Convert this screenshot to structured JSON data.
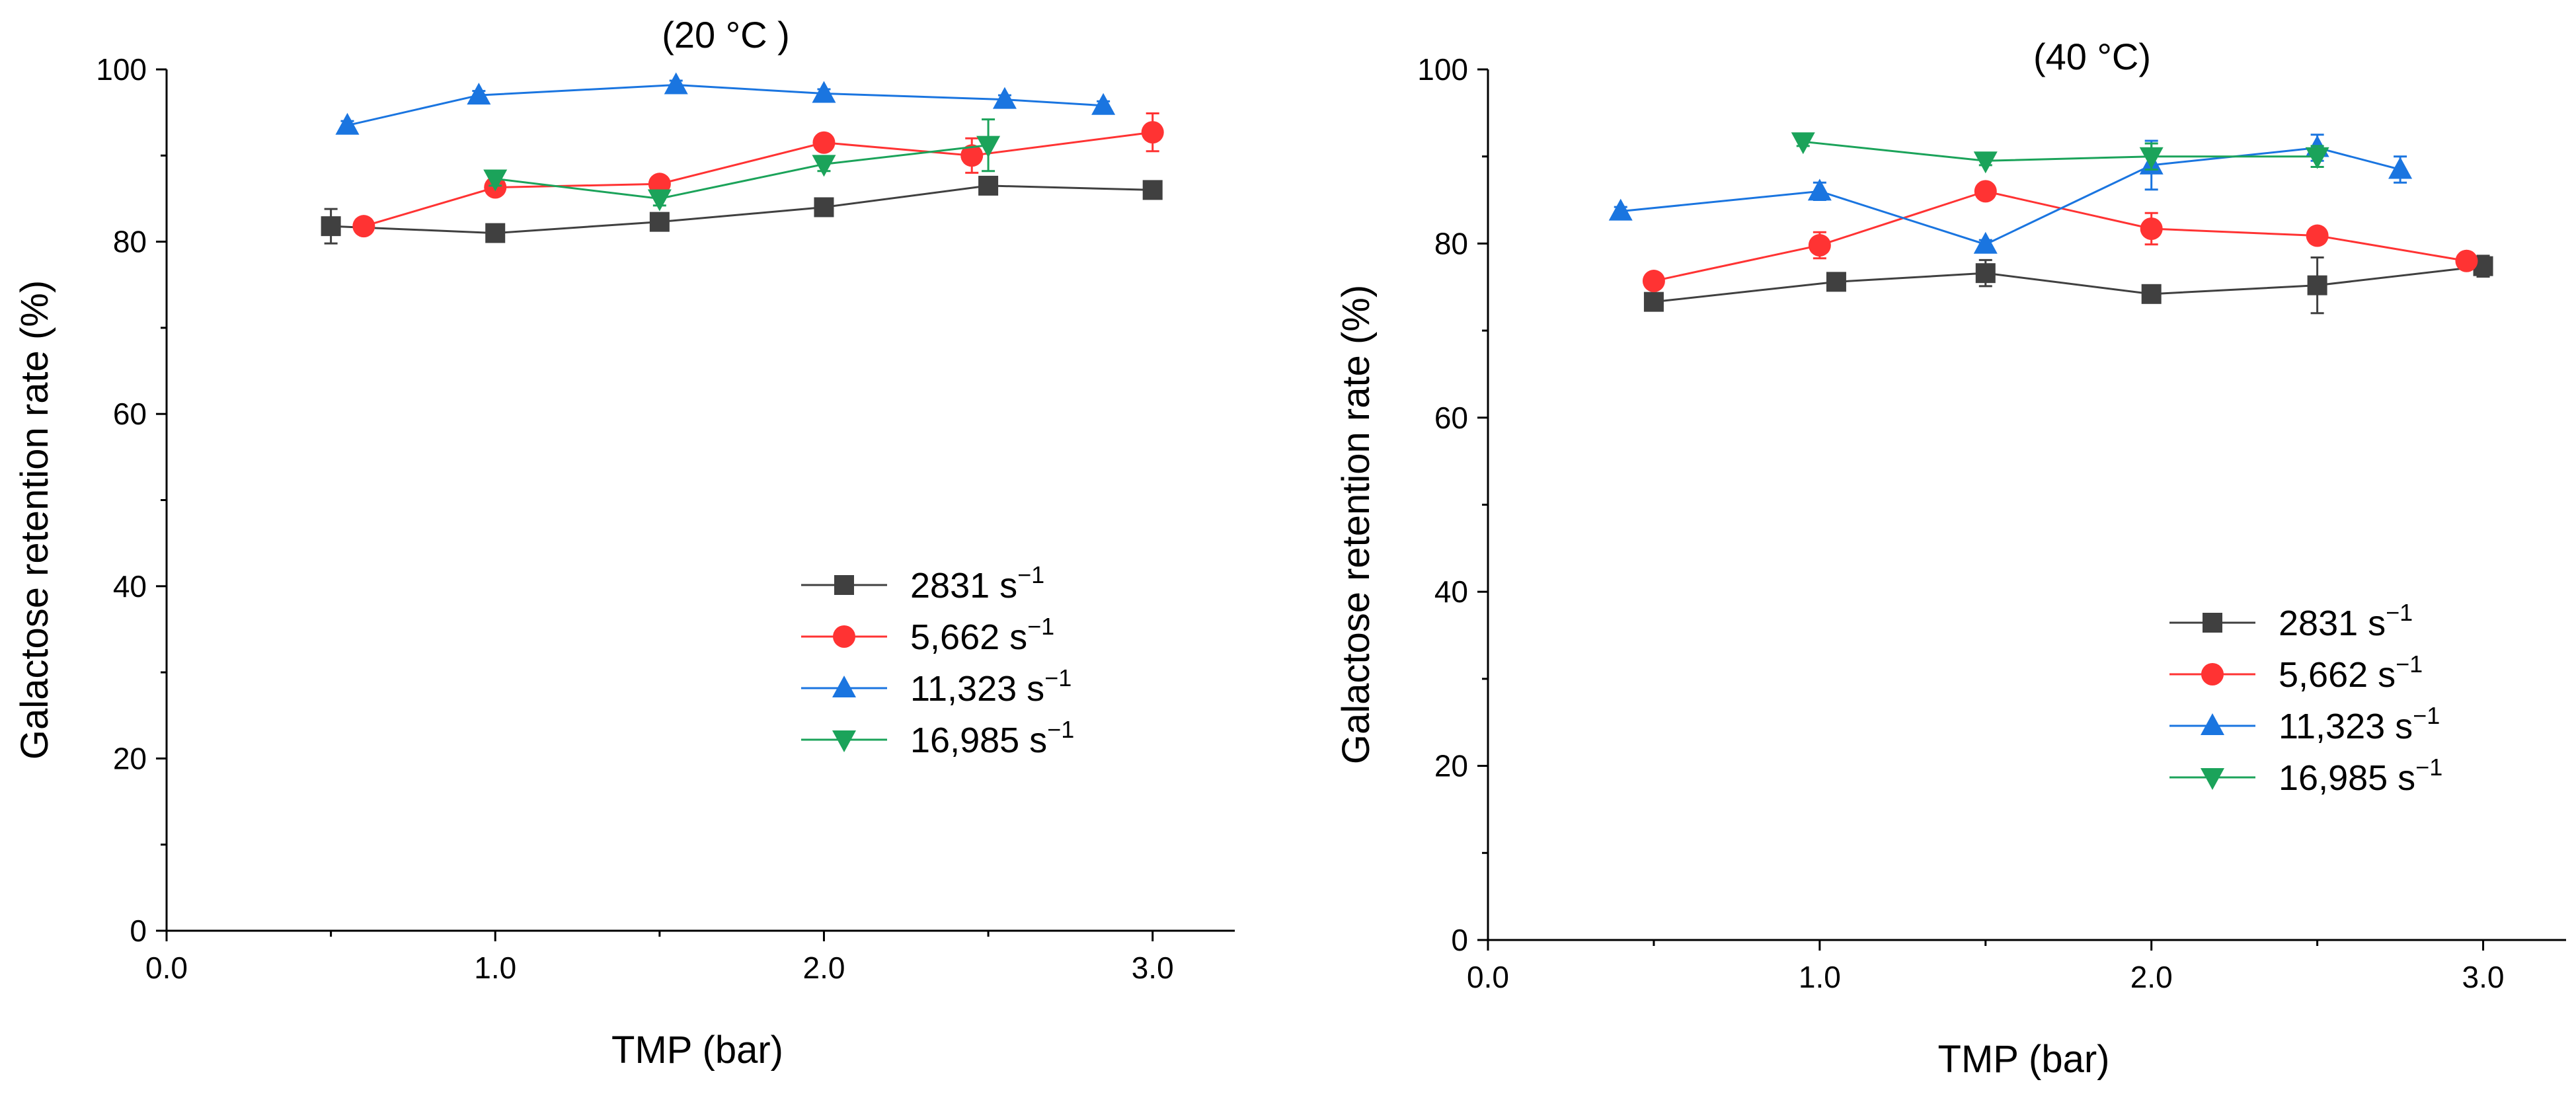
{
  "chart_data": [
    {
      "type": "line",
      "title": "(20 °C )",
      "xlabel": "TMP (bar)",
      "ylabel": "Galactose retention rate (%)",
      "xlim": [
        0.0,
        3.25
      ],
      "ylim": [
        0,
        100
      ],
      "xticks": [
        "0.0",
        "1.0",
        "2.0",
        "3.0"
      ],
      "yticks": [
        "0",
        "20",
        "40",
        "60",
        "80",
        "100"
      ],
      "legend_position": "center-right",
      "series": [
        {
          "name": "2831",
          "unit": "s",
          "exp": "−1",
          "color": "#404040",
          "marker": "square",
          "x": [
            0.5,
            1.0,
            1.5,
            2.0,
            2.5,
            3.0
          ],
          "y": [
            81.8,
            81.0,
            82.3,
            84.0,
            86.5,
            86.0
          ],
          "err": [
            2.0,
            0.8,
            0.8,
            0.8,
            1.0,
            0.8
          ]
        },
        {
          "name": "5,662",
          "unit": "s",
          "exp": "−1",
          "color": "#ff3333",
          "marker": "circle",
          "x": [
            0.6,
            1.0,
            1.5,
            2.0,
            2.45,
            3.0
          ],
          "y": [
            81.8,
            86.3,
            86.7,
            91.5,
            90.0,
            92.7
          ],
          "err": [
            0.6,
            0.8,
            0.8,
            0.8,
            2.0,
            2.2
          ]
        },
        {
          "name": "11,323",
          "unit": "s",
          "exp": "−1",
          "color": "#1a75e0",
          "marker": "triangle-up",
          "x": [
            0.55,
            0.95,
            1.55,
            2.0,
            2.55,
            2.85
          ],
          "y": [
            93.5,
            97.0,
            98.2,
            97.2,
            96.5,
            95.8
          ],
          "err": [
            0.5,
            0.5,
            0.5,
            0.5,
            0.5,
            0.5
          ]
        },
        {
          "name": "16,985",
          "unit": "s",
          "exp": "−1",
          "color": "#1ba35a",
          "marker": "triangle-down",
          "x": [
            1.0,
            1.5,
            2.0,
            2.5
          ],
          "y": [
            87.3,
            85.0,
            89.0,
            91.2
          ],
          "err": [
            0.8,
            0.8,
            0.8,
            3.0
          ]
        }
      ]
    },
    {
      "type": "line",
      "title": "(40 °C)",
      "xlabel": "TMP (bar)",
      "ylabel": "Galactose retention rate (%)",
      "xlim": [
        0.0,
        3.25
      ],
      "ylim": [
        0,
        100
      ],
      "xticks": [
        "0.0",
        "1.0",
        "2.0",
        "3.0"
      ],
      "yticks": [
        "0",
        "20",
        "40",
        "60",
        "80",
        "100"
      ],
      "legend_position": "center-right",
      "series": [
        {
          "name": "2831",
          "unit": "s",
          "exp": "−1",
          "color": "#404040",
          "marker": "square",
          "x": [
            0.5,
            1.05,
            1.5,
            2.0,
            2.5,
            3.0
          ],
          "y": [
            73.3,
            75.6,
            76.6,
            74.2,
            75.2,
            77.4
          ],
          "err": [
            0.8,
            0.8,
            1.5,
            0.8,
            3.2,
            1.2
          ]
        },
        {
          "name": "5,662",
          "unit": "s",
          "exp": "−1",
          "color": "#ff3333",
          "marker": "circle",
          "x": [
            0.5,
            1.0,
            1.5,
            2.0,
            2.5,
            2.95
          ],
          "y": [
            75.7,
            79.8,
            86.0,
            81.7,
            80.9,
            78.0
          ],
          "err": [
            0.6,
            1.5,
            0.8,
            1.8,
            0.8,
            0.6
          ]
        },
        {
          "name": "11,323",
          "unit": "s",
          "exp": "−1",
          "color": "#1a75e0",
          "marker": "triangle-up",
          "x": [
            0.4,
            1.0,
            1.5,
            2.0,
            2.5,
            2.75
          ],
          "y": [
            83.7,
            86.0,
            79.9,
            89.0,
            91.0,
            88.5
          ],
          "err": [
            0.5,
            1.0,
            0.5,
            2.8,
            1.5,
            1.5
          ]
        },
        {
          "name": "16,985",
          "unit": "s",
          "exp": "−1",
          "color": "#1ba35a",
          "marker": "triangle-down",
          "x": [
            0.95,
            1.5,
            2.0,
            2.5
          ],
          "y": [
            91.7,
            89.5,
            90.0,
            90.0
          ],
          "err": [
            0.5,
            0.5,
            1.5,
            1.2
          ]
        }
      ]
    }
  ]
}
